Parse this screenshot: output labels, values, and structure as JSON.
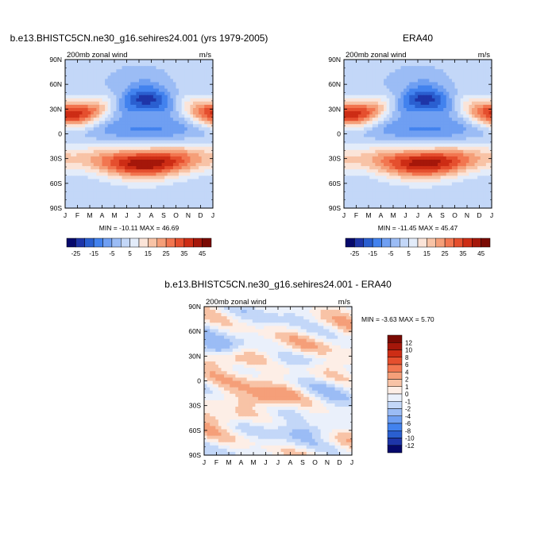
{
  "chart_data": [
    {
      "type": "heatmap",
      "title": "b.e13.BHISTC5CN.ne30_g16.sehires24.001 (yrs 1979-2005)",
      "subtitle_left": "200mb zonal wind",
      "units": "m/s",
      "x_tick_labels": [
        "J",
        "F",
        "M",
        "A",
        "M",
        "J",
        "J",
        "A",
        "S",
        "O",
        "N",
        "D",
        "J"
      ],
      "y_tick_labels": [
        "90N",
        "60N",
        "30N",
        "0",
        "30S",
        "60S",
        "90S"
      ],
      "stats": "MIN = -10.11 MAX =  46.69",
      "colorbar_labels": [
        "-25",
        "-15",
        "-5",
        "5",
        "15",
        "25",
        "35",
        "45"
      ],
      "levels": [
        -30,
        -25,
        -20,
        -15,
        -10,
        -5,
        0,
        5,
        10,
        15,
        20,
        25,
        30,
        35,
        40,
        45
      ],
      "colors": [
        "#06096b",
        "#1e35a8",
        "#2a5fd0",
        "#4282ee",
        "#6f9ff2",
        "#9bbcf5",
        "#c3d7f8",
        "#e3ecfa",
        "#fbe4d8",
        "#f8c3a6",
        "#f59f79",
        "#f27650",
        "#e54f2e",
        "#cd2d15",
        "#a5170a",
        "#7a0a03"
      ],
      "min": -10.11,
      "max": 46.69
    },
    {
      "type": "heatmap",
      "title": "ERA40",
      "subtitle_left": "200mb zonal wind",
      "units": "m/s",
      "x_tick_labels": [
        "J",
        "F",
        "M",
        "A",
        "M",
        "J",
        "J",
        "A",
        "S",
        "O",
        "N",
        "D",
        "J"
      ],
      "y_tick_labels": [
        "90N",
        "60N",
        "30N",
        "0",
        "30S",
        "60S",
        "90S"
      ],
      "stats": "MIN = -11.45 MAX =  45.47",
      "colorbar_labels": [
        "-25",
        "-15",
        "-5",
        "5",
        "15",
        "25",
        "35",
        "45"
      ],
      "levels": [
        -30,
        -25,
        -20,
        -15,
        -10,
        -5,
        0,
        5,
        10,
        15,
        20,
        25,
        30,
        35,
        40,
        45
      ],
      "colors": [
        "#06096b",
        "#1e35a8",
        "#2a5fd0",
        "#4282ee",
        "#6f9ff2",
        "#9bbcf5",
        "#c3d7f8",
        "#e3ecfa",
        "#fbe4d8",
        "#f8c3a6",
        "#f59f79",
        "#f27650",
        "#e54f2e",
        "#cd2d15",
        "#a5170a",
        "#7a0a03"
      ],
      "min": -11.45,
      "max": 45.47
    },
    {
      "type": "heatmap",
      "title": "b.e13.BHISTC5CN.ne30_g16.sehires24.001 - ERA40",
      "subtitle_left": "200mb zonal wind",
      "units": "m/s",
      "x_tick_labels": [
        "J",
        "F",
        "M",
        "A",
        "M",
        "J",
        "J",
        "A",
        "S",
        "O",
        "N",
        "D",
        "J"
      ],
      "y_tick_labels": [
        "90N",
        "60N",
        "30N",
        "0",
        "30S",
        "60S",
        "90S"
      ],
      "stats": "MIN =  -3.63 MAX =   5.70",
      "colorbar_labels": [
        "12",
        "10",
        "8",
        "6",
        "4",
        "2",
        "1",
        "0",
        "-1",
        "-2",
        "-4",
        "-6",
        "-8",
        "-10",
        "-12"
      ],
      "levels": [
        -14,
        -12,
        -10,
        -8,
        -6,
        -4,
        -2,
        -1,
        0,
        1,
        2,
        4,
        6,
        8,
        10,
        12
      ],
      "colors": [
        "#06096b",
        "#1e35a8",
        "#2a5fd0",
        "#4282ee",
        "#6f9ff2",
        "#9bbcf5",
        "#c3d7f8",
        "#eaf0fb",
        "#fdeee6",
        "#f8c3a6",
        "#f59f79",
        "#f27650",
        "#e54f2e",
        "#cd2d15",
        "#a5170a",
        "#7a0a03"
      ],
      "min": -3.63,
      "max": 5.7
    }
  ]
}
